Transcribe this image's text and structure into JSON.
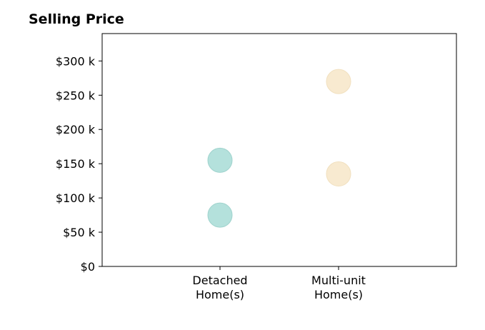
{
  "chart_data": {
    "type": "scatter",
    "title": "Selling Price",
    "xlabel": "",
    "ylabel": "",
    "categories": [
      [
        "Detached",
        "Home(s)"
      ],
      [
        "Multi-unit",
        "Home(s)"
      ]
    ],
    "y_ticks": [
      0,
      50000,
      100000,
      150000,
      200000,
      250000,
      300000
    ],
    "y_tick_labels": [
      "$0",
      "$50 k",
      "$100 k",
      "$150 k",
      "$200 k",
      "$250 k",
      "$300 k"
    ],
    "ylim": [
      0,
      340000
    ],
    "grid": false,
    "series": [
      {
        "color": "#b4e1dc",
        "edge": "#9fd3cd",
        "points": [
          {
            "x": 0,
            "y": 155000
          },
          {
            "x": 0,
            "y": 75000
          }
        ]
      },
      {
        "color": "#f8ead0",
        "edge": "#f1e0bf",
        "points": [
          {
            "x": 1,
            "y": 270000
          },
          {
            "x": 1,
            "y": 135000
          }
        ]
      }
    ]
  }
}
